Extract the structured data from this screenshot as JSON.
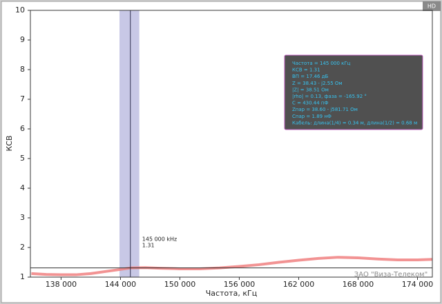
{
  "chart_data": {
    "type": "line",
    "xlabel": "Частота, кГц",
    "ylabel": "КСВ",
    "badge": "HD",
    "watermark": "ЗАО \"Виза-Телеком\"",
    "x": [
      135000,
      136500,
      138000,
      139500,
      141000,
      142500,
      144000,
      145000,
      146500,
      148000,
      150000,
      152000,
      154000,
      156000,
      158000,
      160000,
      162000,
      164000,
      166000,
      168000,
      170000,
      172000,
      174000,
      175500
    ],
    "series": [
      {
        "color": "#f08080",
        "values": [
          1.12,
          1.09,
          1.08,
          1.08,
          1.12,
          1.19,
          1.26,
          1.31,
          1.32,
          1.3,
          1.28,
          1.28,
          1.31,
          1.36,
          1.42,
          1.5,
          1.57,
          1.63,
          1.67,
          1.65,
          1.61,
          1.58,
          1.58,
          1.6
        ]
      }
    ],
    "xlim": [
      134900,
      175500
    ],
    "ylim": [
      1,
      10
    ],
    "xticks": [
      {
        "value": 138000,
        "label": "138 000"
      },
      {
        "value": 144000,
        "label": "144 000"
      },
      {
        "value": 150000,
        "label": "150 000"
      },
      {
        "value": 156000,
        "label": "156 000"
      },
      {
        "value": 162000,
        "label": "162 000"
      },
      {
        "value": 168000,
        "label": "168 000"
      },
      {
        "value": 174000,
        "label": "174 000"
      }
    ],
    "yticks": [
      1,
      2,
      3,
      4,
      5,
      6,
      7,
      8,
      9,
      10
    ],
    "marker": {
      "x": 145000,
      "y": 1.31,
      "band": [
        143900,
        145900
      ],
      "label_x": "145 000 kHz",
      "label_y": "1.31"
    },
    "info_box": [
      "Частота = 145 000 кГц",
      "КСВ = 1.31",
      "ВП = 17.46 дБ",
      "Z = 38.43 - j2.55 Ом",
      "|Z| = 38.51 Ом",
      "|rho| = 0.13, фаза = -165.92 °",
      "C = 430.44 пФ",
      "Zпар = 38.60 - j581.71 Ом",
      "Cпар = 1.89 нФ",
      "Кабель: длина(1/4) = 0.34 м, длина(1/2) = 0.68 м"
    ]
  }
}
